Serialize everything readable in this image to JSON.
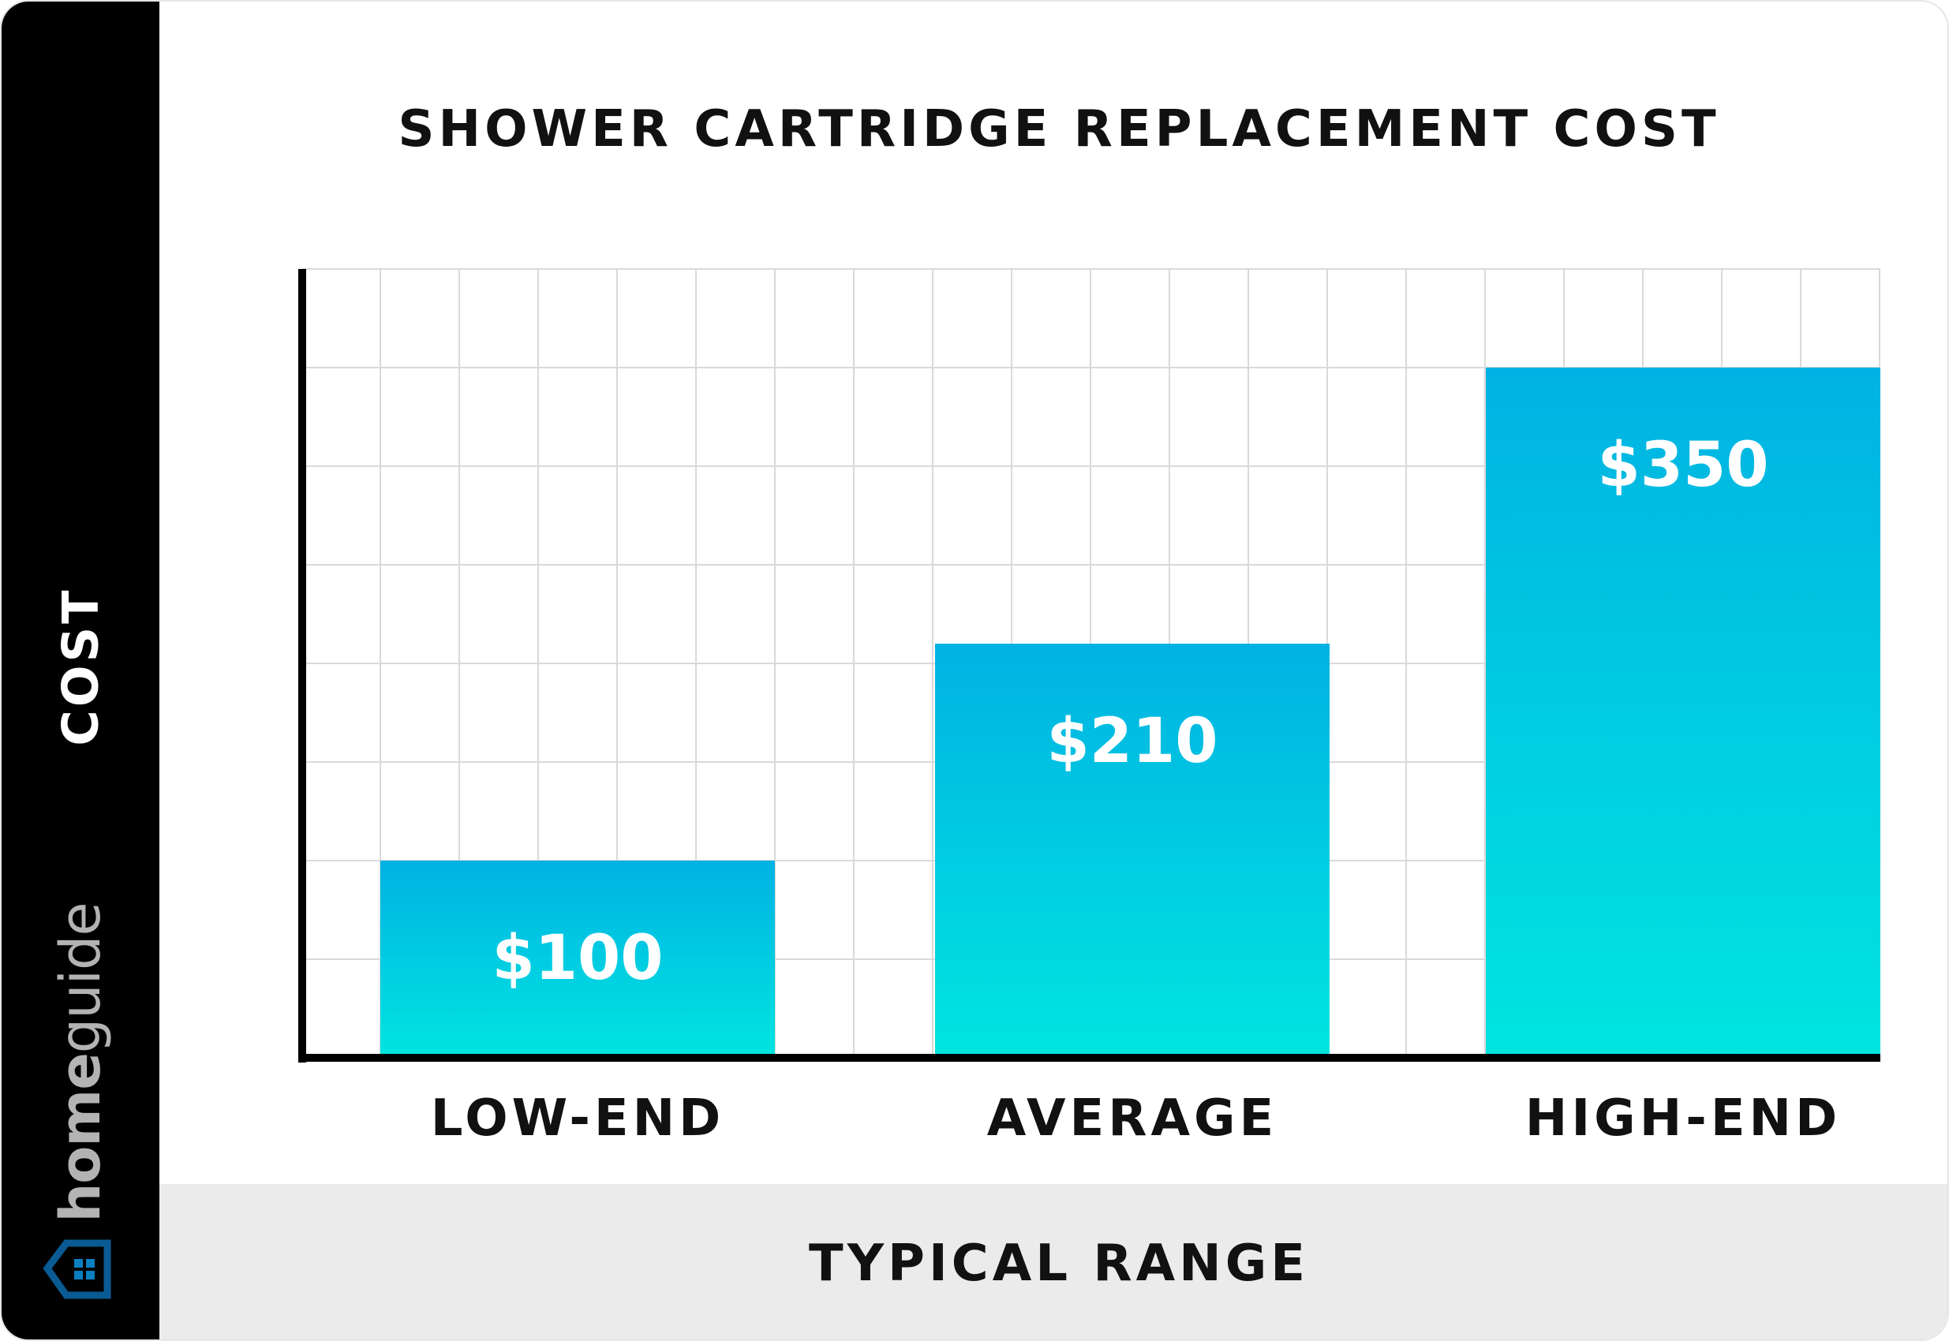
{
  "brand": {
    "logo_text_bold": "home",
    "logo_text_light": "guide",
    "logo_color": "#0a5a93"
  },
  "chart_data": {
    "type": "bar",
    "title": "SHOWER CARTRIDGE REPLACEMENT COST",
    "xlabel": "TYPICAL RANGE",
    "ylabel": "COST",
    "categories": [
      "LOW-END",
      "AVERAGE",
      "HIGH-END"
    ],
    "values": [
      100,
      210,
      350
    ],
    "value_labels": [
      "$100",
      "$210",
      "$350"
    ],
    "ylim": [
      0,
      400
    ],
    "grid": true,
    "bar_gradient": [
      "#00b2e3",
      "#00e5e0"
    ]
  }
}
